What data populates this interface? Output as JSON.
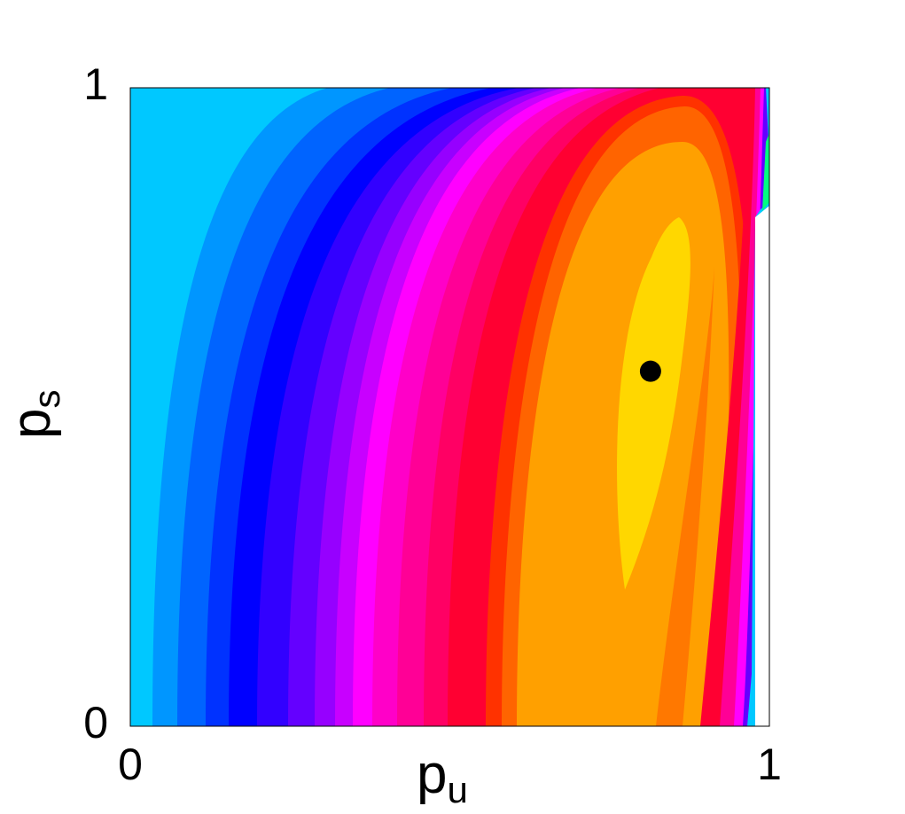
{
  "chart_data": {
    "type": "contour",
    "x_label": "p",
    "x_label_subscript": "u",
    "y_label": "p",
    "y_label_subscript": "s",
    "xlim": [
      0,
      1
    ],
    "ylim": [
      0,
      1
    ],
    "xticks": [
      0,
      1
    ],
    "yticks": [
      0,
      1
    ],
    "series": [
      {
        "x": [
          0.814
        ],
        "values": [
          0.556
        ],
        "color": "#000000"
      }
    ]
  }
}
